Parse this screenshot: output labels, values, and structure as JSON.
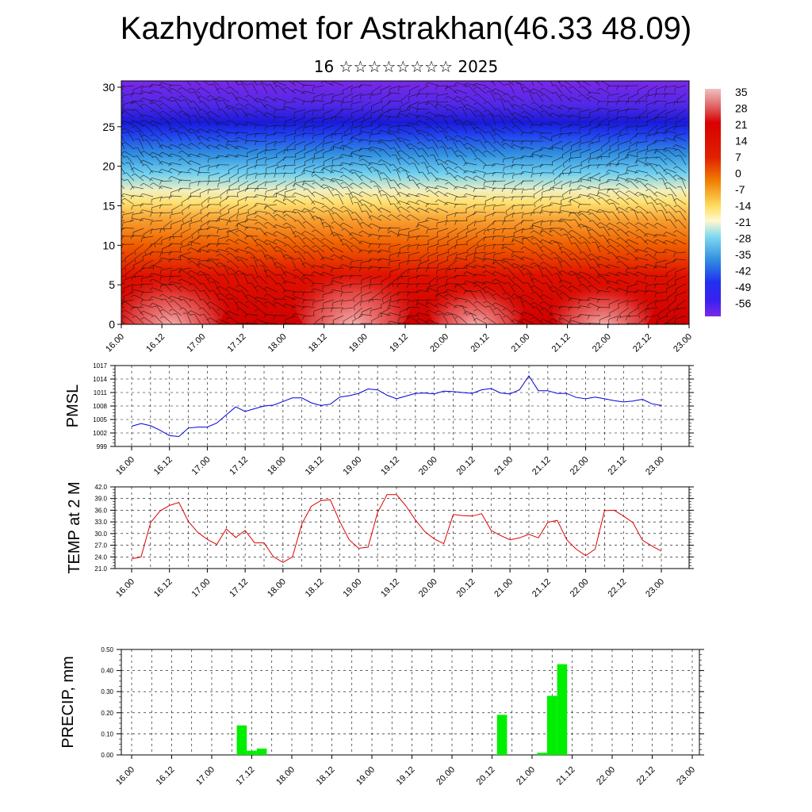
{
  "title": "Kazhydromet for Astrakhan(46.33 48.09)",
  "subtitle": "16 ☆☆☆☆☆☆☆☆ 2025",
  "chart_data": [
    {
      "type": "heatmap",
      "description_kind": "vertical cross-section of temperature with wind barbs",
      "y_ticks": [
        "0",
        "5",
        "10",
        "15",
        "20",
        "25",
        "30"
      ],
      "ylim": [
        0,
        30.8
      ],
      "x_ticks": [
        "16.00",
        "16.12",
        "17.00",
        "17.12",
        "18.00",
        "18.12",
        "19.00",
        "19.12",
        "20.00",
        "20.12",
        "21.00",
        "21.12",
        "22.00",
        "22.12",
        "23.00"
      ],
      "colorbar_labels": [
        "35",
        "28",
        "21",
        "14",
        "7",
        "0",
        "-7",
        "-14",
        "-21",
        "-28",
        "-35",
        "-42",
        "-49",
        "-56"
      ],
      "colorbar_values": [
        35,
        28,
        21,
        14,
        7,
        0,
        -7,
        -14,
        -21,
        -28,
        -35,
        -42,
        -49,
        -56
      ],
      "colors": {
        "hot": "#f0b0b0",
        "warm": "#d80000",
        "mild": "#f07a00",
        "neutral": "#ffe066",
        "cool": "#38b0e8",
        "cold": "#1a1aff",
        "coldest": "#7a28e8"
      }
    },
    {
      "type": "line",
      "ylabel": "PMSL",
      "ylim": [
        999,
        1017
      ],
      "y_ticks": [
        "999",
        "1002",
        "1005",
        "1008",
        "1011",
        "1014",
        "1017"
      ],
      "x_ticks": [
        "16.00",
        "16.12",
        "17.00",
        "17.12",
        "18.00",
        "18.12",
        "19.00",
        "19.12",
        "20.00",
        "20.12",
        "21.00",
        "21.12",
        "22.00",
        "22.12",
        "23.00"
      ],
      "color": "#0000dd",
      "series": [
        {
          "values": [
            1003.5,
            1004.1,
            1003.6,
            1002.6,
            1001.4,
            1001.2,
            1003.1,
            1003.3,
            1003.3,
            1004.2,
            1006.0,
            1007.8,
            1006.8,
            1007.4,
            1008.0,
            1008.2,
            1009.0,
            1009.8,
            1009.8,
            1008.7,
            1008.1,
            1008.4,
            1010.0,
            1010.3,
            1010.8,
            1011.8,
            1011.6,
            1010.4,
            1009.6,
            1010.2,
            1010.8,
            1010.9,
            1010.7,
            1011.3,
            1011.2,
            1011.0,
            1010.8,
            1011.6,
            1011.9,
            1010.9,
            1010.7,
            1011.6,
            1014.7,
            1011.4,
            1011.4,
            1010.8,
            1010.8,
            1009.9,
            1009.6,
            1010.0,
            1009.6,
            1009.2,
            1008.9,
            1009.1,
            1009.5,
            1008.5,
            1008.1
          ]
        }
      ]
    },
    {
      "type": "line",
      "ylabel": "TEMP at 2 M",
      "ylim": [
        21.0,
        42.0
      ],
      "y_ticks": [
        "21.0",
        "24.0",
        "27.0",
        "30.0",
        "33.0",
        "36.0",
        "39.0",
        "42.0"
      ],
      "x_ticks": [
        "16.00",
        "16.12",
        "17.00",
        "17.12",
        "18.00",
        "18.12",
        "19.00",
        "19.12",
        "20.00",
        "20.12",
        "21.00",
        "21.12",
        "22.00",
        "22.12",
        "23.00"
      ],
      "color": "#dd0000",
      "series": [
        {
          "values": [
            23.5,
            24.0,
            32.8,
            35.8,
            37.2,
            38.0,
            33.1,
            30.3,
            28.5,
            27.2,
            31.2,
            29.0,
            30.8,
            27.6,
            27.6,
            24.0,
            22.6,
            24.0,
            32.5,
            37.0,
            38.5,
            38.7,
            33.1,
            28.4,
            26.2,
            26.5,
            35.4,
            40.0,
            40.0,
            37.1,
            33.5,
            30.5,
            28.6,
            27.4,
            34.9,
            34.6,
            34.5,
            35.1,
            30.8,
            29.5,
            28.4,
            28.9,
            29.8,
            28.9,
            32.9,
            33.4,
            28.4,
            26.0,
            24.3,
            26.0,
            35.9,
            36.0,
            34.5,
            32.8,
            28.3,
            26.8,
            25.5
          ]
        }
      ]
    },
    {
      "type": "bar",
      "ylabel": "PRECIP, mm",
      "ylim": [
        0,
        0.5
      ],
      "y_ticks": [
        "0.00",
        "0.10",
        "0.20",
        "0.30",
        "0.40",
        "0.50"
      ],
      "x_ticks": [
        "16.00",
        "16.12",
        "17.00",
        "17.12",
        "18.00",
        "18.12",
        "19.00",
        "19.12",
        "20.00",
        "20.12",
        "21.00",
        "21.12",
        "22.00",
        "22.12",
        "23.00"
      ],
      "color": "#00ee00",
      "bars": [
        {
          "x": 11,
          "value": 0.14
        },
        {
          "x": 12,
          "value": 0.02
        },
        {
          "x": 13,
          "value": 0.03
        },
        {
          "x": 37,
          "value": 0.19
        },
        {
          "x": 41,
          "value": 0.01
        },
        {
          "x": 42,
          "value": 0.28
        },
        {
          "x": 43,
          "value": 0.43
        }
      ]
    }
  ]
}
